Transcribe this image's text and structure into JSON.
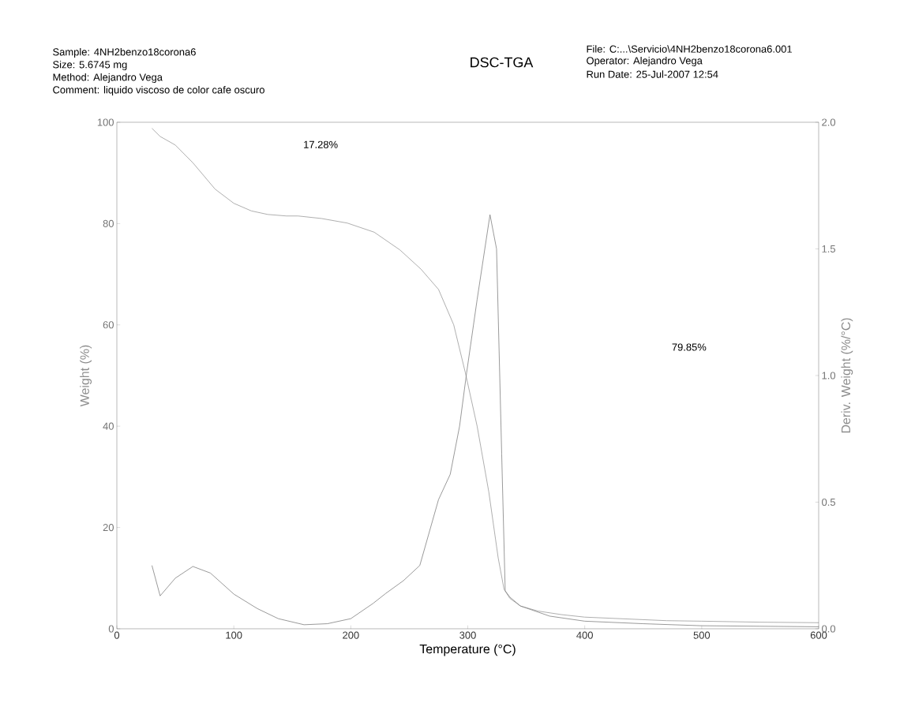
{
  "chart_data": {
    "type": "line",
    "title": "DSC-TGA",
    "xlabel": "Temperature (°C)",
    "ylabel": "Weight (%)",
    "y2label": "Deriv. Weight (%/°C)",
    "xlim": [
      0,
      600
    ],
    "xticks": [
      0,
      100,
      200,
      300,
      400,
      500,
      600
    ],
    "ylim": [
      0,
      100
    ],
    "yticks": [
      0,
      20,
      40,
      60,
      80,
      100
    ],
    "y2lim": [
      0,
      2
    ],
    "y2ticks": [
      {
        "value": 0,
        "label": "0.0"
      },
      {
        "value": 0.5,
        "label": "0.5"
      },
      {
        "value": 1,
        "label": "1.0"
      },
      {
        "value": 1.5,
        "label": "1.5"
      },
      {
        "value": 2,
        "label": "2.0"
      }
    ],
    "series": [
      {
        "color": "#9a9a9a",
        "x": [
          30,
          37,
          50,
          65,
          84,
          100,
          115,
          129,
          145,
          155,
          175,
          197,
          220,
          242,
          260,
          275,
          288,
          298,
          308,
          318,
          326,
          331,
          336,
          345,
          360,
          380,
          400,
          430,
          470,
          500,
          550,
          600
        ],
        "values": [
          98.8,
          97.2,
          95.5,
          92.0,
          86.8,
          84.0,
          82.5,
          81.8,
          81.5,
          81.5,
          81.0,
          80.1,
          78.3,
          74.8,
          71.0,
          67.0,
          60.0,
          50.5,
          40.0,
          27.0,
          14.0,
          7.8,
          6.0,
          4.5,
          3.5,
          2.8,
          2.3,
          2.0,
          1.6,
          1.5,
          1.3,
          1.2
        ]
      },
      {
        "color": "#808080",
        "axis": "y2",
        "x": [
          30,
          37,
          50,
          65,
          80,
          100,
          120,
          138,
          160,
          180,
          200,
          219,
          230,
          245,
          259,
          275,
          285,
          293,
          299,
          308,
          319,
          324.6,
          329,
          332,
          336,
          345,
          370,
          400,
          450,
          500,
          550,
          600
        ],
        "values": [
          0.25,
          0.13,
          0.2,
          0.246,
          0.22,
          0.137,
          0.08,
          0.04,
          0.016,
          0.02,
          0.04,
          0.1,
          0.14,
          0.19,
          0.25,
          0.51,
          0.61,
          0.8,
          1.01,
          1.3,
          1.635,
          1.5,
          0.69,
          0.15,
          0.125,
          0.09,
          0.05,
          0.03,
          0.02,
          0.012,
          0.01,
          0.008
        ]
      }
    ],
    "annotations": [
      "Sample: 4NH2benzo18corona6",
      "Size:  5.6745 mg",
      "Method: Alejandro Vega",
      "Comment: liquido viscoso de color cafe oscuro",
      "File: C:...\\Servicio\\4NH2benzo18corona6.001",
      "Operator: Alejandro Vega",
      "Run Date: 25-Jul-2007 12:54",
      "17.28%",
      "79.85%"
    ]
  }
}
